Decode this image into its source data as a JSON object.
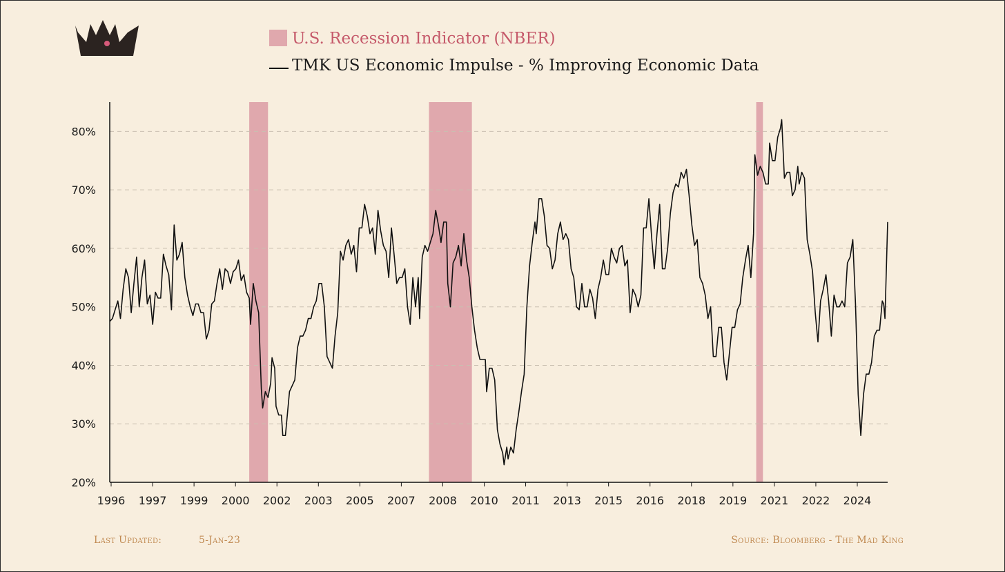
{
  "legend": {
    "recession_label": "U.S. Recession Indicator (NBER)",
    "series_label": "TMK US Economic Impulse - % Improving Economic Data"
  },
  "colors": {
    "background": "#f8eede",
    "recession": "#e0a8ad",
    "line": "#111111",
    "recession_label_text": "#c5596a",
    "footer": "#c08a52",
    "crown": "#2b2320",
    "crown_jewel": "#d65a7a"
  },
  "logo": {
    "icon": "crown-icon"
  },
  "footer": {
    "last_updated_label": "Last Updated:",
    "last_updated_value": "5-Jan-23",
    "source": "Source: Bloomberg - The Mad King"
  },
  "chart_data": {
    "type": "line",
    "title": "",
    "xlabel": "",
    "ylabel": "",
    "ylim": [
      20,
      85
    ],
    "yticks": [
      20,
      30,
      40,
      50,
      60,
      70,
      80
    ],
    "ytick_labels": [
      "20%",
      "30%",
      "40%",
      "50%",
      "60%",
      "70%",
      "80%"
    ],
    "xlim": [
      1996.0,
      2025.0
    ],
    "xtick_labels": [
      "1996",
      "1997",
      "1999",
      "2000",
      "2002",
      "2003",
      "2005",
      "2007",
      "2008",
      "2010",
      "2011",
      "2013",
      "2015",
      "2016",
      "2018",
      "2019",
      "2021",
      "2022",
      "2024"
    ],
    "grid": "horizontal dashed",
    "legend_position": "top-center",
    "recessions": [
      {
        "start": 2001.2,
        "end": 2001.9
      },
      {
        "start": 2007.9,
        "end": 2009.5
      },
      {
        "start": 2020.1,
        "end": 2020.35
      }
    ],
    "series": [
      {
        "name": "TMK US Economic Impulse - % Improving Economic Data",
        "points": [
          [
            1996.0,
            47.5
          ],
          [
            1996.1,
            48
          ],
          [
            1996.2,
            49.5
          ],
          [
            1996.3,
            51
          ],
          [
            1996.4,
            48
          ],
          [
            1996.5,
            53
          ],
          [
            1996.6,
            56.5
          ],
          [
            1996.7,
            55
          ],
          [
            1996.8,
            49
          ],
          [
            1996.9,
            54
          ],
          [
            1997.0,
            58.5
          ],
          [
            1997.1,
            50
          ],
          [
            1997.2,
            55
          ],
          [
            1997.3,
            58
          ],
          [
            1997.4,
            50.5
          ],
          [
            1997.5,
            52
          ],
          [
            1997.6,
            47
          ],
          [
            1997.7,
            52.5
          ],
          [
            1997.8,
            51.5
          ],
          [
            1997.9,
            51.5
          ],
          [
            1998.0,
            59
          ],
          [
            1998.1,
            57
          ],
          [
            1998.2,
            55.5
          ],
          [
            1998.3,
            49.5
          ],
          [
            1998.4,
            64
          ],
          [
            1998.5,
            58
          ],
          [
            1998.6,
            59
          ],
          [
            1998.7,
            61
          ],
          [
            1998.8,
            55
          ],
          [
            1998.9,
            52
          ],
          [
            1999.0,
            50
          ],
          [
            1999.1,
            48.5
          ],
          [
            1999.2,
            50.5
          ],
          [
            1999.3,
            50.5
          ],
          [
            1999.4,
            49
          ],
          [
            1999.5,
            49
          ],
          [
            1999.6,
            44.5
          ],
          [
            1999.7,
            46
          ],
          [
            1999.8,
            50.5
          ],
          [
            1999.9,
            51
          ],
          [
            2000.0,
            54
          ],
          [
            2000.1,
            56.5
          ],
          [
            2000.2,
            53
          ],
          [
            2000.3,
            56.5
          ],
          [
            2000.4,
            56
          ],
          [
            2000.5,
            54
          ],
          [
            2000.6,
            56
          ],
          [
            2000.7,
            56.5
          ],
          [
            2000.8,
            58
          ],
          [
            2000.9,
            54.5
          ],
          [
            2001.0,
            55.5
          ],
          [
            2001.1,
            52.5
          ],
          [
            2001.2,
            51.5
          ],
          [
            2001.25,
            47
          ],
          [
            2001.35,
            54
          ],
          [
            2001.45,
            51
          ],
          [
            2001.55,
            49
          ],
          [
            2001.65,
            36
          ],
          [
            2001.7,
            32.7
          ],
          [
            2001.8,
            35.5
          ],
          [
            2001.9,
            34.5
          ],
          [
            2002.0,
            37
          ],
          [
            2002.05,
            41.3
          ],
          [
            2002.15,
            39.5
          ],
          [
            2002.2,
            33
          ],
          [
            2002.3,
            31.5
          ],
          [
            2002.4,
            31.5
          ],
          [
            2002.45,
            28
          ],
          [
            2002.55,
            28
          ],
          [
            2002.7,
            35.5
          ],
          [
            2002.8,
            36.5
          ],
          [
            2002.9,
            37.5
          ],
          [
            2003.0,
            43
          ],
          [
            2003.1,
            45
          ],
          [
            2003.2,
            45
          ],
          [
            2003.3,
            46
          ],
          [
            2003.4,
            48
          ],
          [
            2003.5,
            48
          ],
          [
            2003.6,
            50
          ],
          [
            2003.7,
            51
          ],
          [
            2003.8,
            54
          ],
          [
            2003.9,
            54
          ],
          [
            2004.0,
            50
          ],
          [
            2004.1,
            41.5
          ],
          [
            2004.2,
            40.5
          ],
          [
            2004.3,
            39.5
          ],
          [
            2004.4,
            45
          ],
          [
            2004.5,
            49
          ],
          [
            2004.6,
            59.5
          ],
          [
            2004.7,
            58
          ],
          [
            2004.8,
            60.5
          ],
          [
            2004.9,
            61.5
          ],
          [
            2005.0,
            59
          ],
          [
            2005.1,
            60.5
          ],
          [
            2005.2,
            56
          ],
          [
            2005.3,
            63.5
          ],
          [
            2005.4,
            63.5
          ],
          [
            2005.5,
            67.5
          ],
          [
            2005.6,
            65.5
          ],
          [
            2005.7,
            62.5
          ],
          [
            2005.8,
            63.5
          ],
          [
            2005.9,
            59
          ],
          [
            2006.0,
            66.5
          ],
          [
            2006.1,
            63
          ],
          [
            2006.2,
            60.5
          ],
          [
            2006.3,
            59.5
          ],
          [
            2006.4,
            55
          ],
          [
            2006.5,
            63.5
          ],
          [
            2006.6,
            59
          ],
          [
            2006.7,
            54
          ],
          [
            2006.8,
            55
          ],
          [
            2006.9,
            55
          ],
          [
            2007.0,
            56.5
          ],
          [
            2007.1,
            50
          ],
          [
            2007.2,
            47
          ],
          [
            2007.3,
            55
          ],
          [
            2007.4,
            50
          ],
          [
            2007.5,
            55
          ],
          [
            2007.55,
            48
          ],
          [
            2007.65,
            58.5
          ],
          [
            2007.75,
            60.5
          ],
          [
            2007.85,
            59.5
          ],
          [
            2007.95,
            61
          ],
          [
            2008.05,
            62.5
          ],
          [
            2008.15,
            66.5
          ],
          [
            2008.25,
            64
          ],
          [
            2008.35,
            61
          ],
          [
            2008.45,
            64.5
          ],
          [
            2008.55,
            64.5
          ],
          [
            2008.6,
            54
          ],
          [
            2008.7,
            50
          ],
          [
            2008.8,
            57.5
          ],
          [
            2008.9,
            58.5
          ],
          [
            2009.0,
            60.5
          ],
          [
            2009.1,
            57
          ],
          [
            2009.2,
            62.5
          ],
          [
            2009.3,
            58
          ],
          [
            2009.4,
            55
          ],
          [
            2009.5,
            50
          ],
          [
            2009.6,
            46
          ],
          [
            2009.7,
            43
          ],
          [
            2009.8,
            41
          ],
          [
            2009.9,
            41
          ],
          [
            2010.0,
            41
          ],
          [
            2010.05,
            35.5
          ],
          [
            2010.15,
            39.5
          ],
          [
            2010.25,
            39.5
          ],
          [
            2010.35,
            37.5
          ],
          [
            2010.45,
            29
          ],
          [
            2010.55,
            26.5
          ],
          [
            2010.65,
            25
          ],
          [
            2010.7,
            23
          ],
          [
            2010.8,
            26
          ],
          [
            2010.85,
            24
          ],
          [
            2010.95,
            26
          ],
          [
            2011.05,
            25
          ],
          [
            2011.15,
            29
          ],
          [
            2011.25,
            32
          ],
          [
            2011.35,
            35.5
          ],
          [
            2011.45,
            38.5
          ],
          [
            2011.55,
            50
          ],
          [
            2011.65,
            57
          ],
          [
            2011.75,
            61
          ],
          [
            2011.85,
            64.5
          ],
          [
            2011.9,
            62.5
          ],
          [
            2012.0,
            68.5
          ],
          [
            2012.1,
            68.5
          ],
          [
            2012.2,
            65.5
          ],
          [
            2012.3,
            60.5
          ],
          [
            2012.4,
            60
          ],
          [
            2012.5,
            56.5
          ],
          [
            2012.6,
            58
          ],
          [
            2012.7,
            62.5
          ],
          [
            2012.8,
            64.5
          ],
          [
            2012.9,
            61.5
          ],
          [
            2013.0,
            62.5
          ],
          [
            2013.1,
            61.5
          ],
          [
            2013.2,
            56.5
          ],
          [
            2013.3,
            55
          ],
          [
            2013.4,
            50
          ],
          [
            2013.5,
            49.5
          ],
          [
            2013.6,
            54
          ],
          [
            2013.7,
            50
          ],
          [
            2013.8,
            50
          ],
          [
            2013.9,
            53
          ],
          [
            2014.0,
            51.5
          ],
          [
            2014.1,
            48
          ],
          [
            2014.2,
            53
          ],
          [
            2014.3,
            55
          ],
          [
            2014.4,
            58
          ],
          [
            2014.5,
            55.5
          ],
          [
            2014.6,
            55.5
          ],
          [
            2014.7,
            60
          ],
          [
            2014.8,
            58.5
          ],
          [
            2014.9,
            57.5
          ],
          [
            2015.0,
            60
          ],
          [
            2015.1,
            60.5
          ],
          [
            2015.2,
            57
          ],
          [
            2015.3,
            58
          ],
          [
            2015.4,
            49
          ],
          [
            2015.5,
            53
          ],
          [
            2015.6,
            52
          ],
          [
            2015.7,
            50
          ],
          [
            2015.8,
            52
          ],
          [
            2015.9,
            63.5
          ],
          [
            2016.0,
            63.5
          ],
          [
            2016.1,
            68.5
          ],
          [
            2016.2,
            62
          ],
          [
            2016.3,
            56.5
          ],
          [
            2016.4,
            62.5
          ],
          [
            2016.5,
            67.5
          ],
          [
            2016.6,
            56.5
          ],
          [
            2016.7,
            56.5
          ],
          [
            2016.8,
            60
          ],
          [
            2016.9,
            66
          ],
          [
            2017.0,
            69.5
          ],
          [
            2017.1,
            71
          ],
          [
            2017.2,
            70.5
          ],
          [
            2017.3,
            73
          ],
          [
            2017.4,
            72
          ],
          [
            2017.5,
            73.5
          ],
          [
            2017.6,
            69
          ],
          [
            2017.7,
            64
          ],
          [
            2017.8,
            60.5
          ],
          [
            2017.9,
            61.5
          ],
          [
            2018.0,
            55
          ],
          [
            2018.1,
            54
          ],
          [
            2018.2,
            52
          ],
          [
            2018.3,
            48
          ],
          [
            2018.4,
            50
          ],
          [
            2018.5,
            41.5
          ],
          [
            2018.6,
            41.5
          ],
          [
            2018.7,
            46.5
          ],
          [
            2018.8,
            46.5
          ],
          [
            2018.9,
            40.5
          ],
          [
            2019.0,
            37.5
          ],
          [
            2019.1,
            42
          ],
          [
            2019.2,
            46.5
          ],
          [
            2019.3,
            46.5
          ],
          [
            2019.4,
            49.5
          ],
          [
            2019.5,
            50.5
          ],
          [
            2019.6,
            55
          ],
          [
            2019.7,
            58
          ],
          [
            2019.8,
            60.5
          ],
          [
            2019.9,
            55
          ],
          [
            2020.0,
            62.5
          ],
          [
            2020.05,
            76
          ],
          [
            2020.15,
            72.5
          ],
          [
            2020.25,
            74
          ],
          [
            2020.35,
            73
          ],
          [
            2020.45,
            71
          ],
          [
            2020.55,
            71
          ],
          [
            2020.6,
            78
          ],
          [
            2020.7,
            75
          ],
          [
            2020.8,
            75
          ],
          [
            2020.9,
            79
          ],
          [
            2021.0,
            80.5
          ],
          [
            2021.05,
            82
          ],
          [
            2021.15,
            72
          ],
          [
            2021.25,
            73
          ],
          [
            2021.35,
            73
          ],
          [
            2021.45,
            69
          ],
          [
            2021.55,
            70
          ],
          [
            2021.65,
            74
          ],
          [
            2021.7,
            71
          ],
          [
            2021.8,
            73
          ],
          [
            2021.9,
            72
          ],
          [
            2022.0,
            61.5
          ],
          [
            2022.1,
            59
          ],
          [
            2022.2,
            56
          ],
          [
            2022.3,
            49
          ],
          [
            2022.4,
            44
          ],
          [
            2022.5,
            51
          ],
          [
            2022.6,
            53
          ],
          [
            2022.7,
            55.5
          ],
          [
            2022.8,
            51
          ],
          [
            2022.9,
            45
          ],
          [
            2023.0,
            52
          ],
          [
            2023.1,
            50
          ],
          [
            2023.2,
            50
          ],
          [
            2023.3,
            51
          ],
          [
            2023.4,
            50
          ],
          [
            2023.5,
            57.5
          ],
          [
            2023.6,
            58.5
          ],
          [
            2023.7,
            61.5
          ],
          [
            2023.8,
            50.5
          ],
          [
            2023.9,
            35
          ],
          [
            2024.0,
            28
          ],
          [
            2024.1,
            35
          ],
          [
            2024.2,
            38.5
          ],
          [
            2024.3,
            38.5
          ],
          [
            2024.4,
            40.5
          ],
          [
            2024.5,
            45
          ],
          [
            2024.6,
            46
          ],
          [
            2024.7,
            46
          ],
          [
            2024.8,
            51
          ],
          [
            2024.85,
            50.5
          ],
          [
            2024.9,
            48
          ],
          [
            2025.0,
            64.5
          ]
        ]
      }
    ]
  }
}
